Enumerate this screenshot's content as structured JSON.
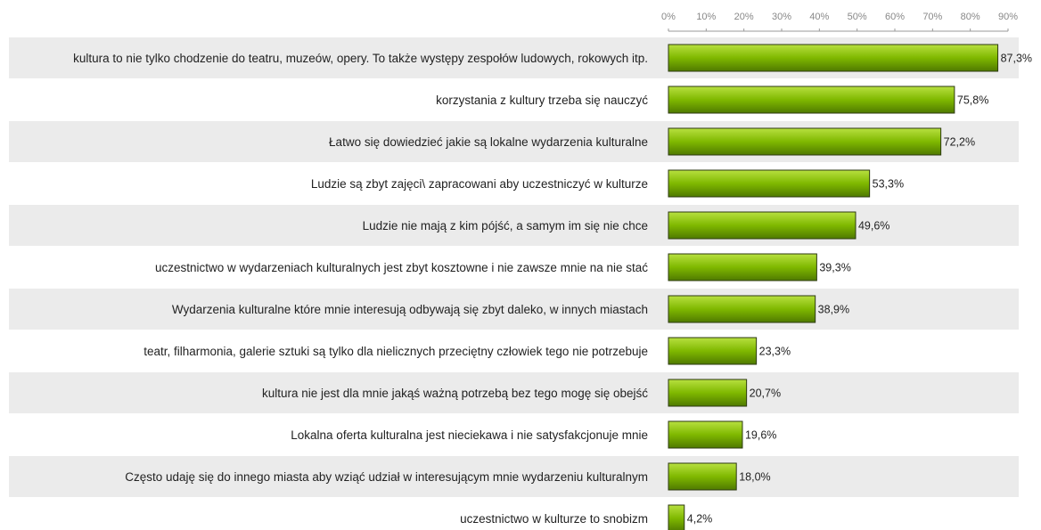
{
  "chart_data": {
    "type": "bar",
    "orientation": "horizontal",
    "categories": [
      "kultura to nie tylko chodzenie do teatru, muzeów, opery. To także występy zespołów ludowych, rokowych itp.",
      "korzystania z kultury trzeba się nauczyć",
      "Łatwo się dowiedzieć jakie są lokalne wydarzenia kulturalne",
      "Ludzie są zbyt zajęci\\ zapracowani aby uczestniczyć w kulturze",
      "Ludzie nie mają z kim pójść, a samym im się nie chce",
      "uczestnictwo w wydarzeniach kulturalnych jest zbyt kosztowne i nie zawsze mnie na nie stać",
      "Wydarzenia kulturalne które mnie interesują odbywają się zbyt daleko, w innych miastach",
      "teatr, filharmonia, galerie sztuki są tylko dla nielicznych przeciętny człowiek tego nie potrzebuje",
      "kultura nie jest dla mnie jakąś ważną potrzebą bez tego mogę się obejść",
      "Lokalna oferta kulturalna jest nieciekawa i nie satysfakcjonuje mnie",
      "Często udaję się do innego miasta aby wziąć udział w interesującym mnie wydarzeniu kulturalnym",
      "uczestnictwo w kulturze to snobizm"
    ],
    "values": [
      87.3,
      75.8,
      72.2,
      53.3,
      49.6,
      39.3,
      38.9,
      23.3,
      20.7,
      19.6,
      18.0,
      4.2
    ],
    "value_labels": [
      "87,3%",
      "75,8%",
      "72,2%",
      "53,3%",
      "49,6%",
      "39,3%",
      "38,9%",
      "23,3%",
      "20,7%",
      "19,6%",
      "18,0%",
      "4,2%"
    ],
    "color": "#7fb800",
    "xlim": [
      0,
      90
    ],
    "xticks": [
      {
        "value": 0,
        "label": "0%"
      },
      {
        "value": 10,
        "label": "10%"
      },
      {
        "value": 20,
        "label": "20%"
      },
      {
        "value": 30,
        "label": "30%"
      },
      {
        "value": 40,
        "label": "40%"
      },
      {
        "value": 50,
        "label": "50%"
      },
      {
        "value": 60,
        "label": "60%"
      },
      {
        "value": 70,
        "label": "70%"
      },
      {
        "value": 80,
        "label": "80%"
      },
      {
        "value": 90,
        "label": "90%"
      }
    ]
  }
}
